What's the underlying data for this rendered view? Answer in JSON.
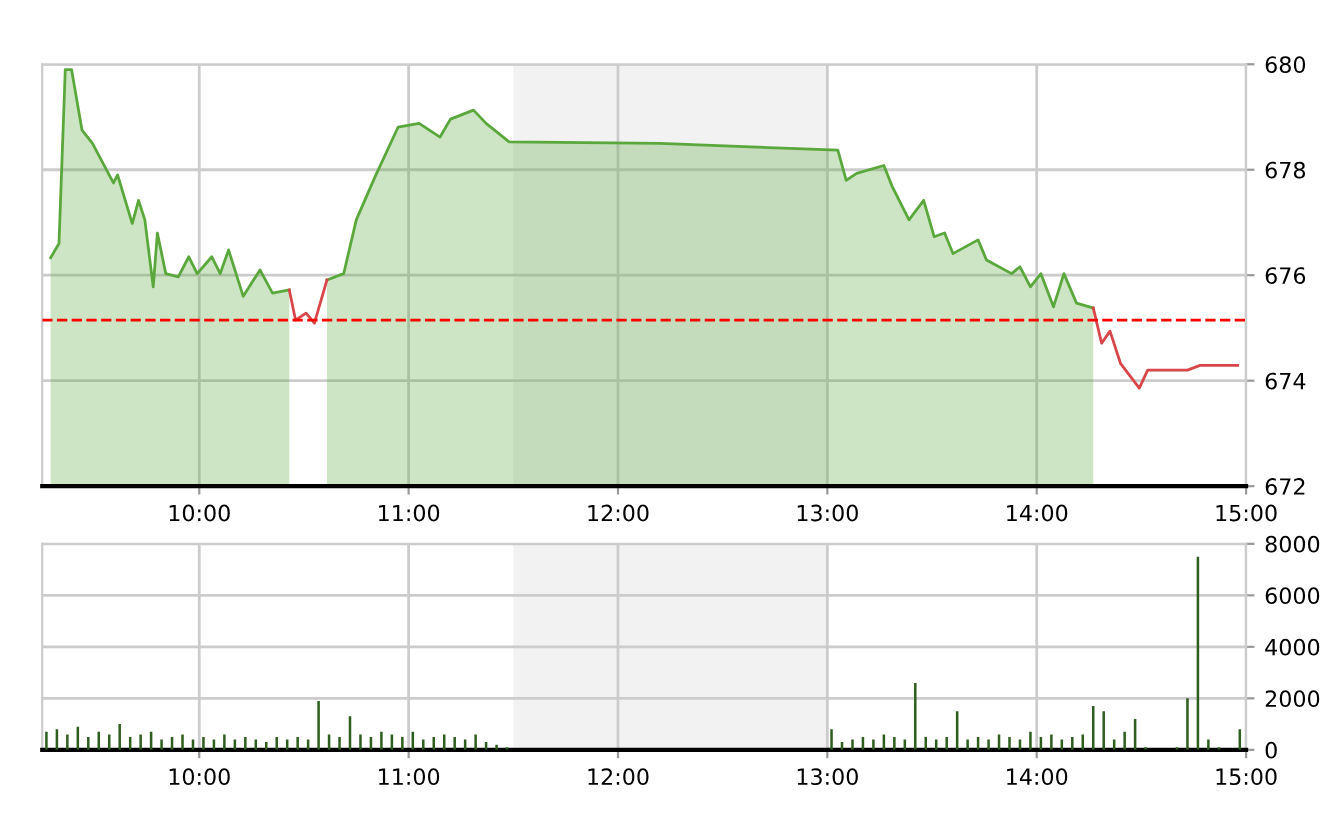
{
  "chart_data": [
    {
      "type": "area",
      "x": [
        9.29,
        9.33,
        9.36,
        9.39,
        9.44,
        9.49,
        9.55,
        9.59,
        9.61,
        9.68,
        9.71,
        9.74,
        9.78,
        9.8,
        9.84,
        9.9,
        9.95,
        9.99,
        10.06,
        10.1,
        10.14,
        10.21,
        10.29,
        10.35,
        10.43,
        10.46,
        10.51,
        10.55,
        10.61,
        10.69,
        10.75,
        10.84,
        10.95,
        11.05,
        11.15,
        11.2,
        11.31,
        11.37,
        11.48,
        12.2,
        13.05,
        13.09,
        13.14,
        13.27,
        13.31,
        13.39,
        13.46,
        13.51,
        13.56,
        13.6,
        13.72,
        13.76,
        13.88,
        13.92,
        13.97,
        14.02,
        14.08,
        14.13,
        14.19,
        14.27,
        14.31,
        14.35,
        14.4,
        14.49,
        14.53,
        14.72,
        14.78,
        14.96
      ],
      "series": [
        {
          "type": "area",
          "color": "#5aa83c",
          "values": [
            676.33,
            676.6,
            679.9,
            679.9,
            678.75,
            678.5,
            678.05,
            677.75,
            677.9,
            676.98,
            677.42,
            677.05,
            675.78,
            676.8,
            676.03,
            675.97,
            676.35,
            676.03,
            676.35,
            676.03,
            676.48,
            675.6,
            676.1,
            675.66,
            675.72,
            null,
            null,
            null,
            675.91,
            676.03,
            677.05,
            677.87,
            678.81,
            678.88,
            678.62,
            678.96,
            679.13,
            678.88,
            678.53,
            678.5,
            678.37,
            677.8,
            677.93,
            678.08,
            677.68,
            677.05,
            677.42,
            676.73,
            676.8,
            676.41,
            676.67,
            676.29,
            676.03,
            676.16,
            675.78,
            676.03,
            675.4,
            676.03,
            675.47,
            675.38,
            null,
            null,
            null,
            null,
            null,
            null,
            null,
            null
          ]
        },
        {
          "type": "line",
          "color": "#d9464a",
          "values": [
            null,
            null,
            null,
            null,
            null,
            null,
            null,
            null,
            null,
            null,
            null,
            null,
            null,
            null,
            null,
            null,
            null,
            null,
            null,
            null,
            null,
            null,
            null,
            null,
            675.72,
            675.15,
            675.28,
            675.09,
            675.91,
            null,
            null,
            null,
            null,
            null,
            null,
            null,
            null,
            null,
            null,
            null,
            null,
            null,
            null,
            null,
            null,
            null,
            null,
            null,
            null,
            null,
            null,
            null,
            null,
            null,
            null,
            null,
            null,
            null,
            null,
            675.38,
            674.71,
            674.94,
            674.33,
            673.86,
            674.2,
            674.2,
            674.29,
            674.29
          ]
        }
      ],
      "xlim": [
        9.25,
        15
      ],
      "xticks": [
        {
          "value": 10,
          "label": "10:00"
        },
        {
          "value": 11,
          "label": "11:00"
        },
        {
          "value": 12,
          "label": "12:00"
        },
        {
          "value": 13,
          "label": "13:00"
        },
        {
          "value": 14,
          "label": "14:00"
        },
        {
          "value": 15,
          "label": "15:00"
        }
      ],
      "ylim": [
        672,
        680
      ],
      "yticks": [
        672,
        674,
        676,
        678,
        680
      ],
      "ref_lines": [
        {
          "axis": "y",
          "value": 675.15,
          "color": "#ff0000",
          "line_style": "dashed"
        }
      ],
      "bands": [
        {
          "axis": "x",
          "from": 11.5,
          "to": 13,
          "color": "#f2f2f2"
        }
      ],
      "grid": true
    },
    {
      "type": "bar",
      "x": [
        9.27,
        9.32,
        9.37,
        9.42,
        9.47,
        9.52,
        9.57,
        9.62,
        9.67,
        9.72,
        9.77,
        9.82,
        9.87,
        9.92,
        9.97,
        10.02,
        10.07,
        10.12,
        10.17,
        10.22,
        10.27,
        10.32,
        10.37,
        10.42,
        10.47,
        10.52,
        10.57,
        10.62,
        10.67,
        10.72,
        10.77,
        10.82,
        10.87,
        10.92,
        10.97,
        11.02,
        11.07,
        11.12,
        11.17,
        11.22,
        11.27,
        11.32,
        11.37,
        11.42,
        11.47,
        13.02,
        13.07,
        13.12,
        13.17,
        13.22,
        13.27,
        13.32,
        13.37,
        13.42,
        13.47,
        13.52,
        13.57,
        13.62,
        13.67,
        13.72,
        13.77,
        13.82,
        13.87,
        13.92,
        13.97,
        14.02,
        14.07,
        14.12,
        14.17,
        14.22,
        14.27,
        14.32,
        14.37,
        14.42,
        14.47,
        14.52,
        14.57,
        14.62,
        14.67,
        14.72,
        14.77,
        14.82,
        14.87,
        14.92,
        14.97
      ],
      "series": [
        {
          "color": "#2e5e1e",
          "values": [
            700,
            800,
            600,
            900,
            500,
            700,
            600,
            1000,
            500,
            600,
            700,
            400,
            500,
            600,
            400,
            500,
            400,
            600,
            400,
            500,
            400,
            300,
            500,
            400,
            500,
            400,
            1900,
            600,
            500,
            1300,
            600,
            500,
            700,
            600,
            500,
            700,
            400,
            500,
            600,
            500,
            400,
            600,
            300,
            200,
            100,
            800,
            300,
            400,
            500,
            400,
            600,
            500,
            400,
            2600,
            500,
            400,
            500,
            1500,
            400,
            500,
            400,
            600,
            500,
            400,
            700,
            500,
            600,
            400,
            500,
            600,
            1700,
            1500,
            400,
            700,
            1200,
            100,
            null,
            null,
            100,
            2000,
            7500,
            400,
            100,
            null,
            800
          ]
        }
      ],
      "xlim": [
        9.25,
        15
      ],
      "xticks": [
        {
          "value": 10,
          "label": "10:00"
        },
        {
          "value": 11,
          "label": "11:00"
        },
        {
          "value": 12,
          "label": "12:00"
        },
        {
          "value": 13,
          "label": "13:00"
        },
        {
          "value": 14,
          "label": "14:00"
        },
        {
          "value": 15,
          "label": "15:00"
        }
      ],
      "ylim": [
        0,
        8000
      ],
      "yticks": [
        0,
        2000,
        4000,
        6000,
        8000
      ],
      "bands": [
        {
          "axis": "x",
          "from": 11.5,
          "to": 13,
          "color": "#f2f2f2"
        }
      ],
      "grid": true
    }
  ]
}
